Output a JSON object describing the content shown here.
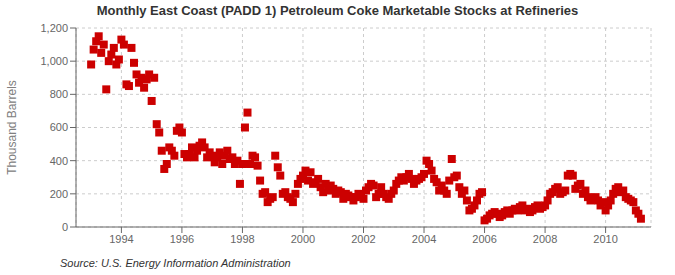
{
  "chart_data": {
    "type": "scatter",
    "title": "Monthly East Coast (PADD 1) Petroleum Coke Marketable Stocks at Refineries",
    "ylabel": "Thousand Barrels",
    "annotations": [
      "Source: U.S. Energy Information Administration"
    ],
    "color": "#cc0000",
    "marker": "square",
    "grid": true,
    "xlim": [
      1992.5,
      2011.5
    ],
    "xticks": [
      1994,
      1996,
      1998,
      2000,
      2002,
      2004,
      2006,
      2008,
      2010
    ],
    "ylim": [
      0,
      1200
    ],
    "yticks": [
      0,
      200,
      400,
      600,
      800,
      {
        "value": 1000,
        "label": "1,000"
      },
      {
        "value": 1200,
        "label": "1,200"
      }
    ],
    "x": [
      1993.0,
      1993.083,
      1993.167,
      1993.25,
      1993.333,
      1993.417,
      1993.5,
      1993.583,
      1993.667,
      1993.75,
      1993.833,
      1993.917,
      1994.0,
      1994.083,
      1994.167,
      1994.25,
      1994.333,
      1994.417,
      1994.5,
      1994.583,
      1994.667,
      1994.75,
      1994.833,
      1994.917,
      1995.0,
      1995.083,
      1995.167,
      1995.25,
      1995.333,
      1995.417,
      1995.5,
      1995.583,
      1995.667,
      1995.75,
      1995.833,
      1995.917,
      1996.0,
      1996.083,
      1996.167,
      1996.25,
      1996.333,
      1996.417,
      1996.5,
      1996.583,
      1996.667,
      1996.75,
      1996.833,
      1996.917,
      1997.0,
      1997.083,
      1997.167,
      1997.25,
      1997.333,
      1997.417,
      1997.5,
      1997.583,
      1997.667,
      1997.75,
      1997.833,
      1997.917,
      1998.0,
      1998.083,
      1998.167,
      1998.25,
      1998.333,
      1998.417,
      1998.5,
      1998.583,
      1998.667,
      1998.75,
      1998.833,
      1998.917,
      1999.0,
      1999.083,
      1999.167,
      1999.25,
      1999.333,
      1999.417,
      1999.5,
      1999.583,
      1999.667,
      1999.75,
      1999.833,
      1999.917,
      2000.0,
      2000.083,
      2000.167,
      2000.25,
      2000.333,
      2000.417,
      2000.5,
      2000.583,
      2000.667,
      2000.75,
      2000.833,
      2000.917,
      2001.0,
      2001.083,
      2001.167,
      2001.25,
      2001.333,
      2001.417,
      2001.5,
      2001.583,
      2001.667,
      2001.75,
      2001.833,
      2001.917,
      2002.0,
      2002.083,
      2002.167,
      2002.25,
      2002.333,
      2002.417,
      2002.5,
      2002.583,
      2002.667,
      2002.75,
      2002.833,
      2002.917,
      2003.0,
      2003.083,
      2003.167,
      2003.25,
      2003.333,
      2003.417,
      2003.5,
      2003.583,
      2003.667,
      2003.75,
      2003.833,
      2003.917,
      2004.0,
      2004.083,
      2004.167,
      2004.25,
      2004.333,
      2004.417,
      2004.5,
      2004.583,
      2004.667,
      2004.75,
      2004.833,
      2004.917,
      2005.0,
      2005.083,
      2005.167,
      2005.25,
      2005.333,
      2005.417,
      2005.5,
      2005.583,
      2005.667,
      2005.75,
      2005.833,
      2005.917,
      2006.0,
      2006.083,
      2006.167,
      2006.25,
      2006.333,
      2006.417,
      2006.5,
      2006.583,
      2006.667,
      2006.75,
      2006.833,
      2006.917,
      2007.0,
      2007.083,
      2007.167,
      2007.25,
      2007.333,
      2007.417,
      2007.5,
      2007.583,
      2007.667,
      2007.75,
      2007.833,
      2007.917,
      2008.0,
      2008.083,
      2008.167,
      2008.25,
      2008.333,
      2008.417,
      2008.5,
      2008.583,
      2008.667,
      2008.75,
      2008.833,
      2008.917,
      2009.0,
      2009.083,
      2009.167,
      2009.25,
      2009.333,
      2009.417,
      2009.5,
      2009.583,
      2009.667,
      2009.75,
      2009.833,
      2009.917,
      2010.0,
      2010.083,
      2010.167,
      2010.25,
      2010.333,
      2010.417,
      2010.5,
      2010.583,
      2010.667,
      2010.75,
      2010.833,
      2010.917,
      2011.0,
      2011.083,
      2011.167
    ],
    "values": [
      980,
      1070,
      1120,
      1150,
      1050,
      1100,
      830,
      1000,
      1040,
      1080,
      980,
      1010,
      1130,
      1100,
      860,
      850,
      1080,
      990,
      920,
      870,
      900,
      840,
      890,
      920,
      760,
      900,
      620,
      570,
      460,
      350,
      380,
      480,
      460,
      430,
      580,
      600,
      570,
      440,
      420,
      440,
      480,
      420,
      460,
      490,
      510,
      480,
      420,
      450,
      430,
      390,
      420,
      450,
      380,
      430,
      460,
      410,
      420,
      380,
      400,
      260,
      380,
      600,
      690,
      380,
      430,
      420,
      370,
      280,
      200,
      210,
      150,
      170,
      180,
      430,
      360,
      310,
      200,
      210,
      180,
      170,
      150,
      200,
      260,
      290,
      310,
      340,
      280,
      330,
      260,
      270,
      290,
      240,
      210,
      260,
      220,
      250,
      230,
      200,
      220,
      210,
      170,
      200,
      190,
      180,
      160,
      180,
      200,
      190,
      170,
      220,
      240,
      260,
      250,
      180,
      200,
      240,
      200,
      180,
      170,
      200,
      220,
      260,
      280,
      300,
      280,
      300,
      320,
      290,
      260,
      280,
      290,
      300,
      320,
      400,
      380,
      340,
      290,
      270,
      220,
      250,
      220,
      200,
      280,
      410,
      300,
      310,
      240,
      200,
      220,
      160,
      100,
      110,
      130,
      160,
      200,
      210,
      40,
      50,
      70,
      80,
      90,
      80,
      60,
      70,
      90,
      100,
      80,
      100,
      110,
      100,
      120,
      130,
      100,
      110,
      90,
      100,
      120,
      130,
      110,
      120,
      130,
      160,
      200,
      210,
      230,
      240,
      200,
      210,
      220,
      310,
      320,
      310,
      230,
      250,
      260,
      200,
      220,
      180,
      160,
      170,
      180,
      160,
      130,
      150,
      100,
      130,
      160,
      200,
      230,
      240,
      210,
      220,
      180,
      170,
      160,
      150,
      100,
      80,
      50
    ]
  }
}
